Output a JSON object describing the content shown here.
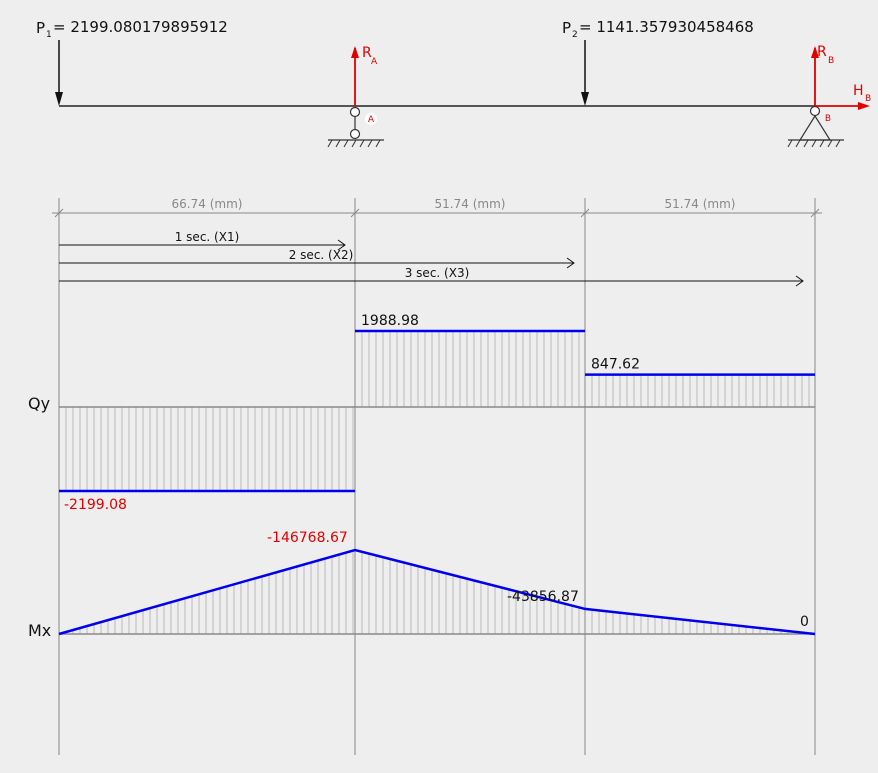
{
  "loads": {
    "p1": {
      "symbol": "P",
      "index": "1",
      "value": "= 2199.080179895912"
    },
    "p2": {
      "symbol": "P",
      "index": "2",
      "value": "= 1141.357930458468"
    }
  },
  "reactions": {
    "ra": {
      "symbol": "R",
      "index": "A"
    },
    "rb": {
      "symbol": "R",
      "index": "B"
    },
    "hb": {
      "symbol": "H",
      "index": "B"
    }
  },
  "supports": {
    "a": "A",
    "b": "B"
  },
  "spans": [
    {
      "label": "66.74 (mm)"
    },
    {
      "label": "51.74 (mm)"
    },
    {
      "label": "51.74 (mm)"
    }
  ],
  "sections": [
    {
      "label": "1 sec. (X1)"
    },
    {
      "label": "2 sec. (X2)"
    },
    {
      "label": "3 sec. (X3)"
    }
  ],
  "diagrams": {
    "qy": {
      "name": "Qy",
      "values": [
        {
          "value": -2199.08,
          "label": "-2199.08"
        },
        {
          "value": 1988.98,
          "label": "1988.98"
        },
        {
          "value": 847.62,
          "label": "847.62"
        }
      ]
    },
    "mx": {
      "name": "Mx",
      "points": [
        {
          "value": 0,
          "label": ""
        },
        {
          "value": -146768.67,
          "label": "-146768.67"
        },
        {
          "value": -43856.87,
          "label": "-43856.87"
        },
        {
          "value": 0,
          "label": "0"
        }
      ]
    }
  },
  "colors": {
    "diagram_line": "#0000ee",
    "reaction": "#e00000",
    "hatch": "#bbbbbb",
    "axis": "#888888"
  }
}
